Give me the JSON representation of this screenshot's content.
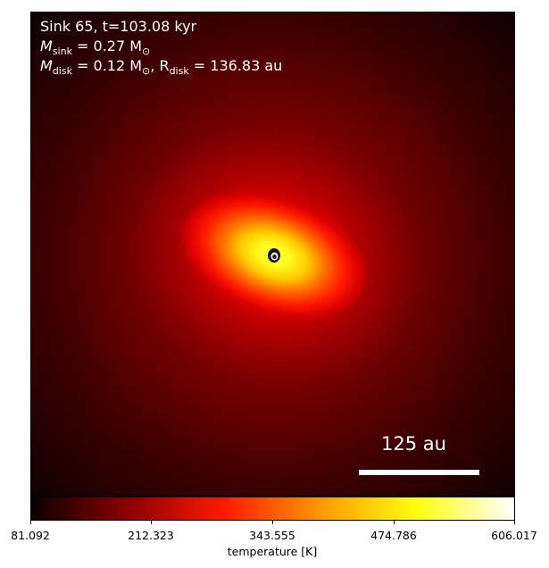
{
  "annotation": {
    "line1": "Sink 65, t=103.08 kyr",
    "line2_prefix": "M",
    "line2_sub": "sink",
    "line2_value": " = 0.27 M",
    "line2_unit_sub": "⊙",
    "line3_prefix": "M",
    "line3_sub": "disk",
    "line3_value": " = 0.12 M",
    "line3_unit_sub": "⊙",
    "line3_sep": ", R",
    "line3_sub2": "disk",
    "line3_value2": " = 136.83 au"
  },
  "scale_bar": {
    "label": "125 au"
  },
  "colorbar": {
    "title": "temperature [K]",
    "ticks": [
      "81.092",
      "212.323",
      "343.555",
      "474.786",
      "606.017"
    ],
    "colormap": "hot",
    "colors": [
      "#0a0000",
      "#8a0000",
      "#ff1a00",
      "#ff9900",
      "#ffff10",
      "#ffffff"
    ]
  },
  "image": {
    "description_colors": {
      "center": "#ffff40",
      "outer": "#1a0000"
    }
  }
}
